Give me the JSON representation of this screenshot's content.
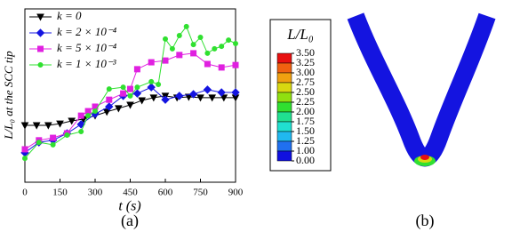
{
  "chart_data": [
    {
      "type": "line",
      "ylabel": "L/L₀ at the SCC tip",
      "xlabel": "t (s)",
      "xlim": [
        0,
        900
      ],
      "xticks": [
        0,
        150,
        300,
        450,
        600,
        750,
        900
      ],
      "ylim": [
        1,
        6
      ],
      "legend": "upper left",
      "series": [
        {
          "name": "k = 0",
          "color": "#000000",
          "marker": "triangle",
          "x": [
            0,
            50,
            100,
            150,
            200,
            250,
            300,
            350,
            400,
            450,
            500,
            550,
            600,
            650,
            700,
            750,
            800,
            850,
            900
          ],
          "values": [
            2.64,
            2.64,
            2.64,
            2.69,
            2.77,
            2.82,
            2.92,
            3.03,
            3.13,
            3.23,
            3.36,
            3.44,
            3.49,
            3.44,
            3.46,
            3.44,
            3.44,
            3.44,
            3.44
          ]
        },
        {
          "name": "k = 2 × 10⁻⁴",
          "color": "#1414e0",
          "marker": "diamond",
          "x": [
            0,
            60,
            120,
            180,
            240,
            300,
            360,
            420,
            480,
            540,
            600,
            660,
            720,
            780,
            840,
            900
          ],
          "values": [
            1.85,
            2.15,
            2.21,
            2.41,
            2.67,
            2.97,
            3.18,
            3.49,
            3.56,
            3.74,
            3.38,
            3.49,
            3.54,
            3.67,
            3.59,
            3.59
          ]
        },
        {
          "name": "k = 5 × 10⁻⁴",
          "color": "#e020e0",
          "marker": "square",
          "x": [
            0,
            60,
            120,
            180,
            240,
            270,
            300,
            360,
            420,
            450,
            480,
            540,
            600,
            660,
            720,
            780,
            840,
            900
          ],
          "values": [
            1.95,
            2.21,
            2.28,
            2.41,
            2.92,
            3.05,
            3.18,
            3.38,
            3.56,
            3.69,
            4.26,
            4.46,
            4.51,
            4.67,
            4.72,
            4.41,
            4.31,
            4.38
          ]
        },
        {
          "name": "k = 1 × 10⁻³",
          "color": "#30e030",
          "marker": "circle",
          "x": [
            0,
            60,
            120,
            180,
            240,
            270,
            300,
            360,
            420,
            450,
            480,
            540,
            570,
            600,
            630,
            660,
            690,
            720,
            750,
            780,
            810,
            840,
            870,
            900
          ],
          "values": [
            1.69,
            2.15,
            2.08,
            2.36,
            2.46,
            2.92,
            3.05,
            3.69,
            3.74,
            3.49,
            3.74,
            3.9,
            3.82,
            5.13,
            4.85,
            5.23,
            5.49,
            4.97,
            5.18,
            4.72,
            4.85,
            4.92,
            5.1,
            5.0
          ]
        }
      ]
    },
    {
      "type": "colorbar",
      "title": "L/L₀",
      "ticks": [
        {
          "value": 3.5,
          "label": "3.50"
        },
        {
          "value": 3.25,
          "label": "3.25"
        },
        {
          "value": 3,
          "label": "3.00"
        },
        {
          "value": 2.75,
          "label": "2.75"
        },
        {
          "value": 2.5,
          "label": "2.50"
        },
        {
          "value": 2.25,
          "label": "2.25"
        },
        {
          "value": 2,
          "label": "2.00"
        },
        {
          "value": 1.75,
          "label": "1.75"
        },
        {
          "value": 1.5,
          "label": "1.50"
        },
        {
          "value": 1.25,
          "label": "1.25"
        },
        {
          "value": 1,
          "label": "1.00"
        },
        {
          "value": 0,
          "label": "0.00"
        }
      ],
      "colors": [
        "#e81010",
        "#f06010",
        "#f0a010",
        "#d8d810",
        "#90e010",
        "#30e030",
        "#20e090",
        "#20e0d0",
        "#20b8f0",
        "#2070f0",
        "#1010e0"
      ]
    }
  ],
  "captions": [
    "(a)",
    "(b)"
  ]
}
